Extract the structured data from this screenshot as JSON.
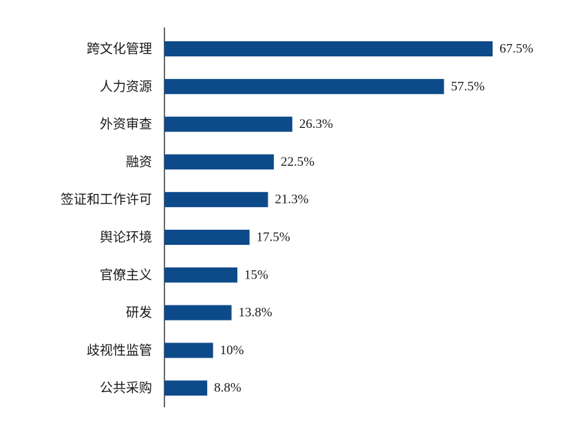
{
  "chart_data": {
    "type": "bar",
    "orientation": "horizontal",
    "categories": [
      "跨文化管理",
      "人力资源",
      "外资审查",
      "融资",
      "签证和工作许可",
      "舆论环境",
      "官僚主义",
      "研发",
      "歧视性监管",
      "公共采购"
    ],
    "values": [
      67.5,
      57.5,
      26.3,
      22.5,
      21.3,
      17.5,
      15,
      13.8,
      10,
      8.8
    ],
    "value_labels": [
      "67.5%",
      "57.5%",
      "26.3%",
      "22.5%",
      "21.3%",
      "17.5%",
      "15%",
      "13.8%",
      "10%",
      "8.8%"
    ],
    "title": "",
    "xlabel": "",
    "ylabel": "",
    "xlim": [
      0,
      67.5
    ],
    "grid": false,
    "legend": "none",
    "bar_color": "#0d4a8a",
    "axis_color": "#000000"
  }
}
